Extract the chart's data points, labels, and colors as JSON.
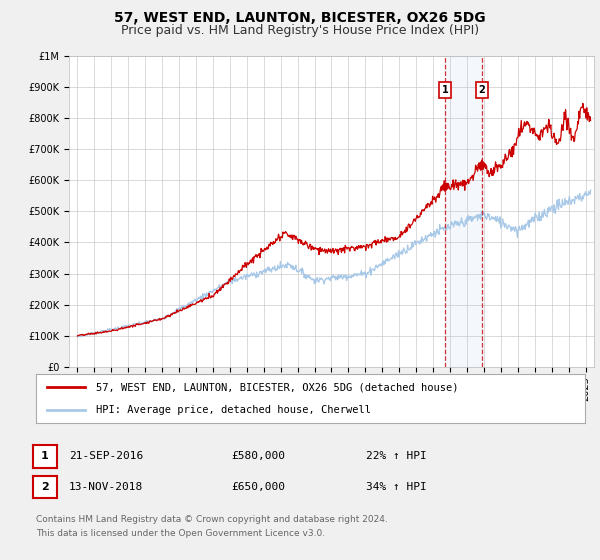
{
  "title": "57, WEST END, LAUNTON, BICESTER, OX26 5DG",
  "subtitle": "Price paid vs. HM Land Registry's House Price Index (HPI)",
  "ylim": [
    0,
    1000000
  ],
  "yticks": [
    0,
    100000,
    200000,
    300000,
    400000,
    500000,
    600000,
    700000,
    800000,
    900000,
    1000000
  ],
  "ytick_labels": [
    "£0",
    "£100K",
    "£200K",
    "£300K",
    "£400K",
    "£500K",
    "£600K",
    "£700K",
    "£800K",
    "£900K",
    "£1M"
  ],
  "xlim_start": 1994.5,
  "xlim_end": 2025.5,
  "sale1_date": 2016.72,
  "sale1_price": 580000,
  "sale1_label": "21-SEP-2016",
  "sale1_amount": "£580,000",
  "sale1_pct": "22% ↑ HPI",
  "sale2_date": 2018.87,
  "sale2_price": 650000,
  "sale2_label": "13-NOV-2018",
  "sale2_amount": "£650,000",
  "sale2_pct": "34% ↑ HPI",
  "legend_line1": "57, WEST END, LAUNTON, BICESTER, OX26 5DG (detached house)",
  "legend_line2": "HPI: Average price, detached house, Cherwell",
  "footnote1": "Contains HM Land Registry data © Crown copyright and database right 2024.",
  "footnote2": "This data is licensed under the Open Government Licence v3.0.",
  "hpi_color": "#a8c8e8",
  "price_color": "#cc0000",
  "bg_color": "#f0f0f0",
  "plot_bg_color": "#ffffff",
  "grid_color": "#cccccc",
  "sale_box_color": "#cc0000",
  "title_fontsize": 10,
  "subtitle_fontsize": 9,
  "tick_fontsize": 7,
  "legend_fontsize": 7.5,
  "annot_fontsize": 8
}
